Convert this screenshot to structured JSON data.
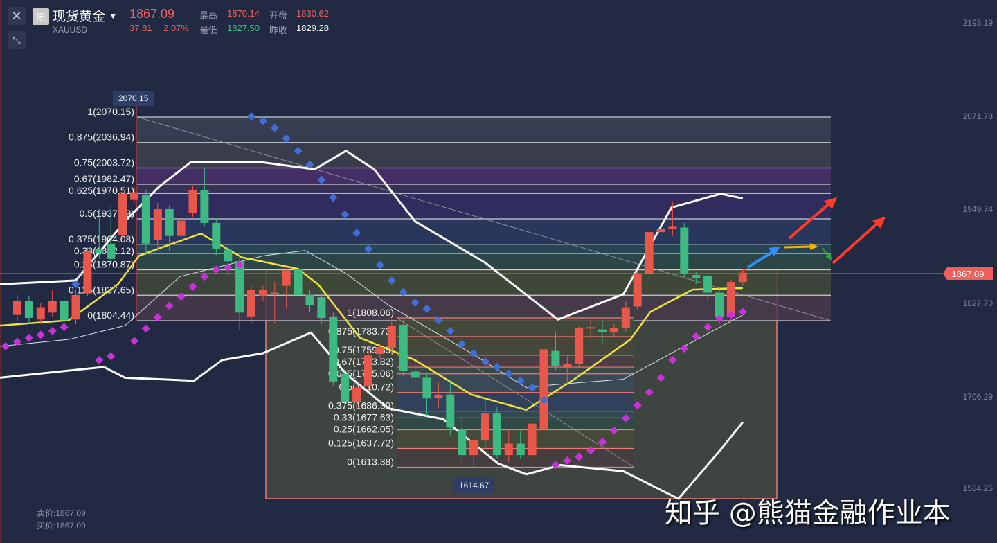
{
  "header": {
    "close_icon": "close-icon",
    "collapse_icon": "collapse-arrows-icon",
    "market_badge": "闭",
    "title": "现货黄金",
    "symbol": "XAUUSD",
    "last_price": "1867.09",
    "change": "37.81",
    "change_pct": "2.07%",
    "high_label": "最高",
    "high": "1870.14",
    "open_label": "开盘",
    "open": "1830.62",
    "low_label": "最低",
    "low": "1827.50",
    "prev_close_label": "昨收",
    "prev_close": "1829.28"
  },
  "footer": {
    "sell": "卖价:1867.09",
    "buy": "买价:1867.09"
  },
  "watermark": "知乎 @熊猫金融作业本",
  "colors": {
    "up": "#e8574a",
    "down": "#3dba82",
    "ma": "#f2e53a",
    "band": "#ffffff",
    "sar_up": "#c832d8",
    "sar_down": "#3f6fd8",
    "background": "#212a42"
  },
  "chart_data": {
    "type": "candlestick",
    "y_axis_ticks": [
      "2193.19",
      "2071.78",
      "1949.74",
      "1827.70",
      "1706.29",
      "1584.25"
    ],
    "ylim": [
      1584.25,
      2193.19
    ],
    "current_price": "1867.09",
    "high_marker": "2070.15",
    "low_marker": "1614.67",
    "candles_ohlc": [
      [
        1812,
        1838,
        1804,
        1830
      ],
      [
        1830,
        1836,
        1800,
        1808
      ],
      [
        1806,
        1828,
        1800,
        1822
      ],
      [
        1815,
        1845,
        1810,
        1830
      ],
      [
        1830,
        1836,
        1798,
        1805
      ],
      [
        1806,
        1845,
        1800,
        1838
      ],
      [
        1840,
        1900,
        1836,
        1895
      ],
      [
        1898,
        1950,
        1885,
        1892
      ],
      [
        1905,
        1955,
        1880,
        1885
      ],
      [
        1916,
        1978,
        1910,
        1970
      ],
      [
        1962,
        1980,
        1958,
        1972
      ],
      [
        1968,
        1975,
        1890,
        1905
      ],
      [
        1910,
        1958,
        1895,
        1950
      ],
      [
        1950,
        1955,
        1895,
        1915
      ],
      [
        1915,
        1940,
        1905,
        1935
      ],
      [
        1945,
        1980,
        1940,
        1975
      ],
      [
        1975,
        2003,
        1928,
        1932
      ],
      [
        1932,
        1938,
        1890,
        1898
      ],
      [
        1897,
        1905,
        1862,
        1882
      ],
      [
        1882,
        1890,
        1792,
        1815
      ],
      [
        1810,
        1850,
        1800,
        1845
      ],
      [
        1837,
        1850,
        1830,
        1845
      ],
      [
        1840,
        1855,
        1800,
        1841
      ],
      [
        1850,
        1875,
        1820,
        1870
      ],
      [
        1872,
        1878,
        1812,
        1838
      ],
      [
        1838,
        1845,
        1815,
        1825
      ],
      [
        1835,
        1840,
        1800,
        1808
      ],
      [
        1810,
        1815,
        1720,
        1725
      ],
      [
        1735,
        1742,
        1690,
        1698
      ],
      [
        1698,
        1722,
        1690,
        1717
      ],
      [
        1719,
        1765,
        1712,
        1759
      ],
      [
        1761,
        1775,
        1755,
        1770
      ],
      [
        1769,
        1806,
        1760,
        1798
      ],
      [
        1799,
        1805,
        1732,
        1739
      ],
      [
        1738,
        1750,
        1722,
        1730
      ],
      [
        1730,
        1735,
        1680,
        1703
      ],
      [
        1704,
        1725,
        1690,
        1707
      ],
      [
        1708,
        1725,
        1655,
        1665
      ],
      [
        1663,
        1678,
        1620,
        1629
      ],
      [
        1629,
        1650,
        1614,
        1648
      ],
      [
        1648,
        1702,
        1640,
        1684
      ],
      [
        1684,
        1692,
        1625,
        1629
      ],
      [
        1629,
        1662,
        1620,
        1644
      ],
      [
        1644,
        1660,
        1625,
        1629
      ],
      [
        1629,
        1672,
        1620,
        1670
      ],
      [
        1662,
        1770,
        1652,
        1767
      ],
      [
        1765,
        1790,
        1740,
        1745
      ],
      [
        1743,
        1760,
        1722,
        1748
      ],
      [
        1748,
        1798,
        1742,
        1795
      ],
      [
        1795,
        1805,
        1780,
        1796
      ],
      [
        1793,
        1805,
        1775,
        1790
      ],
      [
        1789,
        1800,
        1782,
        1795
      ],
      [
        1795,
        1830,
        1790,
        1822
      ],
      [
        1823,
        1868,
        1818,
        1866
      ],
      [
        1866,
        1925,
        1860,
        1920
      ],
      [
        1920,
        1928,
        1910,
        1924
      ],
      [
        1924,
        1960,
        1915,
        1927
      ],
      [
        1926,
        1932,
        1860,
        1866
      ],
      [
        1864,
        1868,
        1852,
        1860
      ],
      [
        1863,
        1866,
        1830,
        1841
      ],
      [
        1841,
        1848,
        1800,
        1809
      ],
      [
        1809,
        1858,
        1805,
        1855
      ],
      [
        1855,
        1870,
        1850,
        1867
      ]
    ],
    "bollinger_upper": [
      [
        -1.5,
        1852
      ],
      [
        5,
        1857
      ],
      [
        9.2,
        1934
      ],
      [
        12.1,
        1979
      ],
      [
        14.8,
        2011
      ],
      [
        21,
        2011
      ],
      [
        25.4,
        2002
      ],
      [
        28.1,
        2026
      ],
      [
        30.5,
        2002
      ],
      [
        34,
        1934
      ],
      [
        40,
        1880
      ],
      [
        46.2,
        1806
      ],
      [
        51.8,
        1839
      ],
      [
        55.9,
        1952
      ],
      [
        60.1,
        1970
      ],
      [
        62,
        1964
      ]
    ],
    "bollinger_middle": [
      [
        -1.5,
        1771
      ],
      [
        4.4,
        1780
      ],
      [
        9.2,
        1798
      ],
      [
        13.9,
        1862
      ],
      [
        21,
        1889
      ],
      [
        24.6,
        1896
      ],
      [
        28.1,
        1866
      ],
      [
        31.7,
        1825
      ],
      [
        38.8,
        1762
      ],
      [
        43.5,
        1717
      ],
      [
        45.9,
        1721
      ],
      [
        51.8,
        1728
      ],
      [
        56.5,
        1767
      ],
      [
        62,
        1812
      ]
    ],
    "bollinger_lower": [
      [
        -1.5,
        1730
      ],
      [
        7.4,
        1744
      ],
      [
        9.2,
        1730
      ],
      [
        15.1,
        1726
      ],
      [
        17.5,
        1753
      ],
      [
        21,
        1762
      ],
      [
        25.1,
        1789
      ],
      [
        28.1,
        1735
      ],
      [
        31.7,
        1690
      ],
      [
        36.4,
        1676
      ],
      [
        41.1,
        1618
      ],
      [
        43.5,
        1604
      ],
      [
        46.4,
        1616
      ],
      [
        51.8,
        1608
      ],
      [
        56.5,
        1572
      ],
      [
        60.1,
        1636
      ],
      [
        62,
        1672
      ]
    ],
    "moving_average": [
      [
        -1.5,
        1798
      ],
      [
        4.4,
        1805
      ],
      [
        8.6,
        1852
      ],
      [
        10.4,
        1889
      ],
      [
        12.7,
        1902
      ],
      [
        15.7,
        1918
      ],
      [
        19.2,
        1887
      ],
      [
        24,
        1872
      ],
      [
        25.7,
        1852
      ],
      [
        29.3,
        1782
      ],
      [
        34,
        1753
      ],
      [
        38.8,
        1708
      ],
      [
        43.5,
        1688
      ],
      [
        47.6,
        1728
      ],
      [
        52.4,
        1780
      ],
      [
        54.1,
        1816
      ],
      [
        57.7,
        1845
      ],
      [
        62,
        1847
      ]
    ],
    "sar_below": [
      [
        -1,
        1771
      ],
      [
        0,
        1777
      ],
      [
        1,
        1782
      ],
      [
        2,
        1786
      ],
      [
        3,
        1791
      ],
      [
        4,
        1796
      ],
      [
        7,
        1753
      ],
      [
        8,
        1758
      ],
      [
        10,
        1778
      ],
      [
        11,
        1794
      ],
      [
        12,
        1809
      ],
      [
        13,
        1824
      ],
      [
        14,
        1836
      ],
      [
        15,
        1849
      ],
      [
        16,
        1862
      ],
      [
        17,
        1871
      ],
      [
        18,
        1874
      ],
      [
        19,
        1877
      ],
      [
        46,
        1616
      ],
      [
        47,
        1622
      ],
      [
        48,
        1627
      ],
      [
        49,
        1635
      ],
      [
        50,
        1646
      ],
      [
        51,
        1661
      ],
      [
        52,
        1677
      ],
      [
        53,
        1694
      ],
      [
        54,
        1711
      ],
      [
        55,
        1730
      ],
      [
        56,
        1753
      ],
      [
        57,
        1768
      ],
      [
        58,
        1784
      ],
      [
        59,
        1796
      ],
      [
        60,
        1807
      ],
      [
        61,
        1812
      ],
      [
        62,
        1816
      ]
    ],
    "sar_above": [
      [
        5,
        1852
      ],
      [
        20,
        2071
      ],
      [
        21,
        2065
      ],
      [
        22,
        2056
      ],
      [
        23,
        2042
      ],
      [
        24,
        2026
      ],
      [
        25,
        2008
      ],
      [
        26,
        1988
      ],
      [
        27,
        1965
      ],
      [
        28,
        1943
      ],
      [
        29,
        1919
      ],
      [
        30,
        1898
      ],
      [
        31,
        1877
      ],
      [
        32,
        1857
      ],
      [
        33,
        1842
      ],
      [
        34,
        1828
      ],
      [
        35,
        1820
      ],
      [
        36,
        1805
      ],
      [
        37,
        1791
      ],
      [
        38,
        1774
      ],
      [
        39,
        1762
      ],
      [
        40,
        1751
      ],
      [
        41,
        1744
      ],
      [
        42,
        1735
      ],
      [
        43,
        1726
      ],
      [
        44,
        1717
      ],
      [
        45,
        1701
      ]
    ],
    "fib_upper": {
      "high": 2070.15,
      "low": 1804.44,
      "levels": [
        {
          "label": "1(2070.15)",
          "price": 2070.15
        },
        {
          "label": "0.875(2036.94)",
          "price": 2036.94
        },
        {
          "label": "0.75(2003.72)",
          "price": 2003.72
        },
        {
          "label": "0.67(1982.47)",
          "price": 1982.47
        },
        {
          "label": "0.625(1970.51)",
          "price": 1970.51
        },
        {
          "label": "0.5(1937.29)",
          "price": 1937.29
        },
        {
          "label": "0.375(1904.08)",
          "price": 1904.08
        },
        {
          "label": "0.33(1892.12)",
          "price": 1892.12
        },
        {
          "label": "0.25(1870.87)",
          "price": 1870.87
        },
        {
          "label": "0.125(1837.65)",
          "price": 1837.65
        },
        {
          "label": "0(1804.44)",
          "price": 1804.44
        }
      ]
    },
    "fib_lower": {
      "high": 1808.06,
      "low": 1613.38,
      "levels": [
        {
          "label": "1(1808.06)",
          "price": 1808.06
        },
        {
          "label": "0.875(1783.73)",
          "price": 1783.73
        },
        {
          "label": "0.75(1759.39)",
          "price": 1759.39
        },
        {
          "label": "0.67(1743.82)",
          "price": 1743.82
        },
        {
          "label": "0.625(1735.06)",
          "price": 1735.06
        },
        {
          "label": "0.5(1710.72)",
          "price": 1710.72
        },
        {
          "label": "0.375(1686.39)",
          "price": 1686.39
        },
        {
          "label": "0.33(1677.63)",
          "price": 1677.63
        },
        {
          "label": "0.25(1662.05)",
          "price": 1662.05
        },
        {
          "label": "0.125(1637.72)",
          "price": 1637.72
        },
        {
          "label": "0(1613.38)",
          "price": 1613.38
        }
      ]
    }
  }
}
